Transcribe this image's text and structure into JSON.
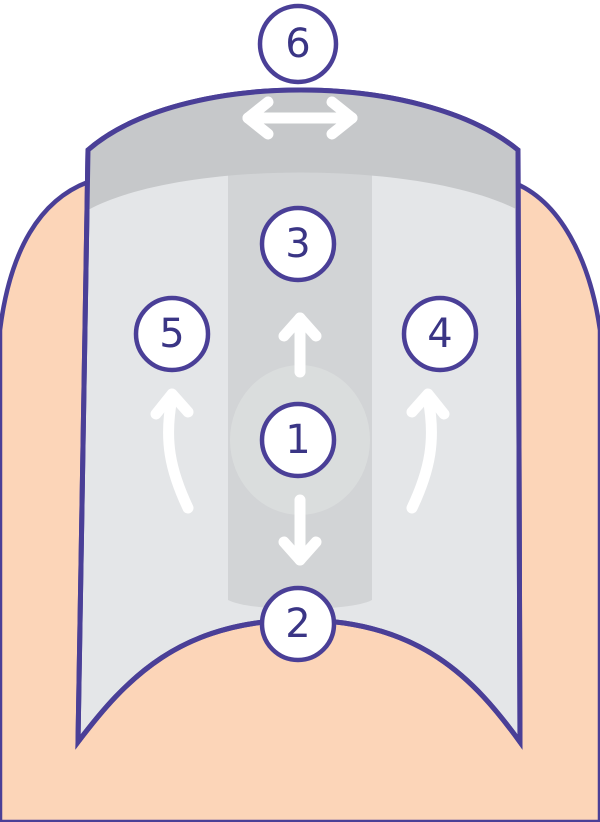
{
  "diagram": {
    "colors": {
      "skin": "#fcd5b8",
      "outline": "#4a3f97",
      "nail_bed": "#e4e6e8",
      "center_band": "#d2d4d6",
      "free_edge": "#c6c8ca",
      "arrow": "#ffffff",
      "label_text": "#3a3585"
    },
    "markers": [
      {
        "id": "1",
        "label": "1"
      },
      {
        "id": "2",
        "label": "2"
      },
      {
        "id": "3",
        "label": "3"
      },
      {
        "id": "4",
        "label": "4"
      },
      {
        "id": "5",
        "label": "5"
      },
      {
        "id": "6",
        "label": "6"
      }
    ],
    "arrows": [
      "up",
      "down",
      "curve-left",
      "curve-right",
      "horizontal-both"
    ]
  }
}
